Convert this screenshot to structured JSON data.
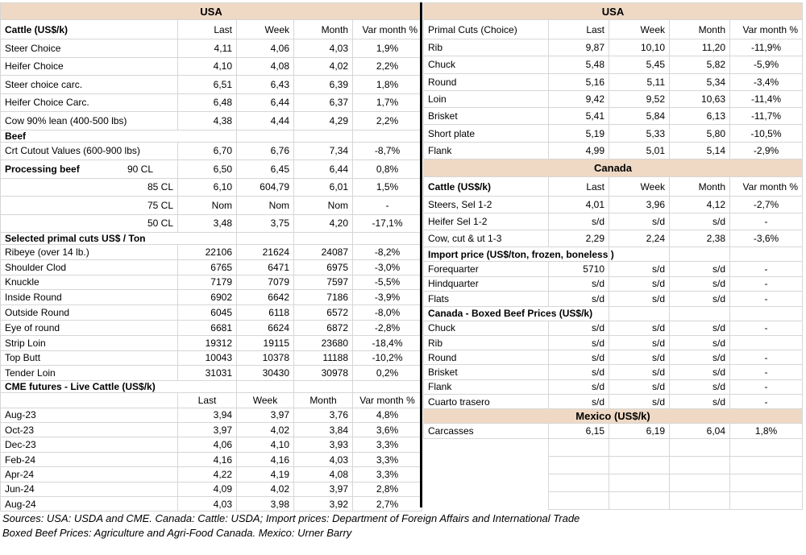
{
  "colors": {
    "band": "#efd9c5",
    "grid": "#d6d6d6",
    "divider": "#000000",
    "text": "#000000"
  },
  "left_table": {
    "rows": [
      {
        "kind": "band",
        "label": "USA"
      },
      {
        "kind": "header",
        "label": "Cattle (US$/k)",
        "bold": true,
        "cols": [
          "Last",
          "Week",
          "Month",
          "Var month %"
        ]
      },
      {
        "kind": "data",
        "label": "Steer Choice",
        "values": [
          "4,11",
          "4,06",
          "4,03",
          "1,9%"
        ]
      },
      {
        "kind": "data",
        "label": "Heifer Choice",
        "values": [
          "4,10",
          "4,08",
          "4,02",
          "2,2%"
        ]
      },
      {
        "kind": "data",
        "label": "Steer choice carc.",
        "values": [
          "6,51",
          "6,43",
          "6,39",
          "1,8%"
        ]
      },
      {
        "kind": "data",
        "label": "Heifer Choice Carc.",
        "values": [
          "6,48",
          "6,44",
          "6,37",
          "1,7%"
        ]
      },
      {
        "kind": "data",
        "label": "Cow 90% lean (400-500 lbs)",
        "values": [
          "4,38",
          "4,44",
          "4,29",
          "2,2%"
        ]
      },
      {
        "kind": "sect",
        "label": "Beef"
      },
      {
        "kind": "data",
        "label": "Crt Cutout Values (600-900 lbs)",
        "values": [
          "6,70",
          "6,76",
          "7,34",
          "-8,7%"
        ]
      },
      {
        "kind": "data2",
        "label_bold": "Processing beef",
        "label_sub": "90 CL",
        "values": [
          "6,50",
          "6,45",
          "6,44",
          "0,8%"
        ]
      },
      {
        "kind": "data",
        "label": "85 CL",
        "align": "r",
        "values": [
          "6,10",
          "604,79",
          "6,01",
          "1,5%"
        ]
      },
      {
        "kind": "data",
        "label": "75 CL",
        "align": "r",
        "values": [
          "Nom",
          "Nom",
          "Nom",
          "-"
        ]
      },
      {
        "kind": "data",
        "label": "50 CL",
        "align": "r",
        "values": [
          "3,48",
          "3,75",
          "4,20",
          "-17,1%"
        ]
      },
      {
        "kind": "sect",
        "label": "Selected primal cuts US$ / Ton"
      },
      {
        "kind": "data",
        "label": "Ribeye (over 14 lb.)",
        "values": [
          "22106",
          "21624",
          "24087",
          "-8,2%"
        ]
      },
      {
        "kind": "data",
        "label": "Shoulder Clod",
        "values": [
          "6765",
          "6471",
          "6975",
          "-3,0%"
        ]
      },
      {
        "kind": "data",
        "label": "Knuckle",
        "values": [
          "7179",
          "7079",
          "7597",
          "-5,5%"
        ]
      },
      {
        "kind": "data",
        "label": "Inside Round",
        "values": [
          "6902",
          "6642",
          "7186",
          "-3,9%"
        ]
      },
      {
        "kind": "data",
        "label": "Outside Round",
        "values": [
          "6045",
          "6118",
          "6572",
          "-8,0%"
        ]
      },
      {
        "kind": "data",
        "label": "Eye of round",
        "values": [
          "6681",
          "6624",
          "6872",
          "-2,8%"
        ]
      },
      {
        "kind": "data",
        "label": "Strip Loin",
        "values": [
          "19312",
          "19115",
          "23680",
          "-18,4%"
        ]
      },
      {
        "kind": "data",
        "label": "Top Butt",
        "values": [
          "10043",
          "10378",
          "11188",
          "-10,2%"
        ]
      },
      {
        "kind": "data",
        "label": "Tender Loin",
        "values": [
          "31031",
          "30430",
          "30978",
          "0,2%"
        ]
      },
      {
        "kind": "sect",
        "label": "CME futures - Live Cattle (US$/k)"
      },
      {
        "kind": "header",
        "label": "",
        "bold": false,
        "center": true,
        "cols": [
          "Last",
          "Week",
          "Month",
          "Var month %"
        ]
      },
      {
        "kind": "data",
        "label": "Aug-23",
        "values": [
          "3,94",
          "3,97",
          "3,76",
          "4,8%"
        ]
      },
      {
        "kind": "data",
        "label": "Oct-23",
        "values": [
          "3,97",
          "4,02",
          "3,84",
          "3,6%"
        ]
      },
      {
        "kind": "data",
        "label": "Dec-23",
        "values": [
          "4,06",
          "4,10",
          "3,93",
          "3,3%"
        ]
      },
      {
        "kind": "data",
        "label": "Feb-24",
        "values": [
          "4,16",
          "4,16",
          "4,03",
          "3,3%"
        ]
      },
      {
        "kind": "data",
        "label": "Apr-24",
        "values": [
          "4,22",
          "4,19",
          "4,08",
          "3,3%"
        ]
      },
      {
        "kind": "data",
        "label": "Jun-24",
        "values": [
          "4,09",
          "4,02",
          "3,97",
          "2,8%"
        ]
      },
      {
        "kind": "data",
        "label": "Aug-24",
        "values": [
          "4,03",
          "3,98",
          "3,92",
          "2,7%"
        ]
      }
    ]
  },
  "right_table": {
    "rows": [
      {
        "kind": "band",
        "label": "USA"
      },
      {
        "kind": "header",
        "label": "Primal Cuts (Choice)",
        "bold": false,
        "cols": [
          "Last",
          "Week",
          "Month",
          "Var month %"
        ]
      },
      {
        "kind": "data",
        "label": "Rib",
        "values": [
          "9,87",
          "10,10",
          "11,20",
          "-11,9%"
        ]
      },
      {
        "kind": "data",
        "label": "Chuck",
        "values": [
          "5,48",
          "5,45",
          "5,82",
          "-5,9%"
        ]
      },
      {
        "kind": "data",
        "label": "Round",
        "values": [
          "5,16",
          "5,11",
          "5,34",
          "-3,4%"
        ]
      },
      {
        "kind": "data",
        "label": "Loin",
        "values": [
          "9,42",
          "9,52",
          "10,63",
          "-11,4%"
        ]
      },
      {
        "kind": "data",
        "label": "Brisket",
        "values": [
          "5,41",
          "5,84",
          "6,13",
          "-11,7%"
        ]
      },
      {
        "kind": "data",
        "label": "Short plate",
        "values": [
          "5,19",
          "5,33",
          "5,80",
          "-10,5%"
        ]
      },
      {
        "kind": "data",
        "label": "Flank",
        "values": [
          "4,99",
          "5,01",
          "5,14",
          "-2,9%"
        ]
      },
      {
        "kind": "band",
        "label": "Canada"
      },
      {
        "kind": "header",
        "label": "Cattle (US$/k)",
        "bold": true,
        "cols": [
          "Last",
          "Week",
          "Month",
          "Var month %"
        ]
      },
      {
        "kind": "data",
        "label": "Steers, Sel 1-2",
        "values": [
          "4,01",
          "3,96",
          "4,12",
          "-2,7%"
        ]
      },
      {
        "kind": "data",
        "label": "Heifer Sel 1-2",
        "values": [
          "s/d",
          "s/d",
          "s/d",
          "-"
        ]
      },
      {
        "kind": "data",
        "label": "Cow, cut & ut 1-3",
        "values": [
          "2,29",
          "2,24",
          "2,38",
          "-3,6%"
        ]
      },
      {
        "kind": "sect",
        "label": "Import price (US$/ton, frozen, boneless )"
      },
      {
        "kind": "data",
        "label": "Forequarter",
        "values": [
          "5710",
          "s/d",
          "s/d",
          "-"
        ]
      },
      {
        "kind": "data",
        "label": "Hindquarter",
        "values": [
          "s/d",
          "s/d",
          "s/d",
          "-"
        ]
      },
      {
        "kind": "data",
        "label": "Flats",
        "values": [
          "s/d",
          "s/d",
          "s/d",
          "-"
        ]
      },
      {
        "kind": "sect",
        "label": "Canada - Boxed Beef Prices (US$/k)"
      },
      {
        "kind": "data",
        "label": "Chuck",
        "values": [
          "s/d",
          "s/d",
          "s/d",
          "-"
        ]
      },
      {
        "kind": "data",
        "label": "Rib",
        "values": [
          "s/d",
          "s/d",
          "s/d",
          ""
        ]
      },
      {
        "kind": "data",
        "label": "Round",
        "values": [
          "s/d",
          "s/d",
          "s/d",
          "-"
        ]
      },
      {
        "kind": "data",
        "label": "Brisket",
        "values": [
          "s/d",
          "s/d",
          "s/d",
          "-"
        ]
      },
      {
        "kind": "data",
        "label": "Flank",
        "values": [
          "s/d",
          "s/d",
          "s/d",
          "-"
        ]
      },
      {
        "kind": "data",
        "label": "Cuarto trasero",
        "values": [
          "s/d",
          "s/d",
          "s/d",
          "-"
        ]
      },
      {
        "kind": "band",
        "label": "Mexico (US$/k)"
      },
      {
        "kind": "data",
        "label": "Carcasses",
        "values": [
          "6,15",
          "6,19",
          "6,04",
          "1,8%"
        ]
      },
      {
        "kind": "empty"
      },
      {
        "kind": "empty"
      },
      {
        "kind": "empty"
      },
      {
        "kind": "empty"
      }
    ]
  },
  "footer": {
    "line1": "Sources: USA: USDA and CME. Canada: Cattle: USDA; Import prices: Department of Foreign Affairs and International Trade",
    "line2": "Boxed Beef Prices: Agriculture and Agri-Food Canada. Mexico: Urner Barry"
  }
}
